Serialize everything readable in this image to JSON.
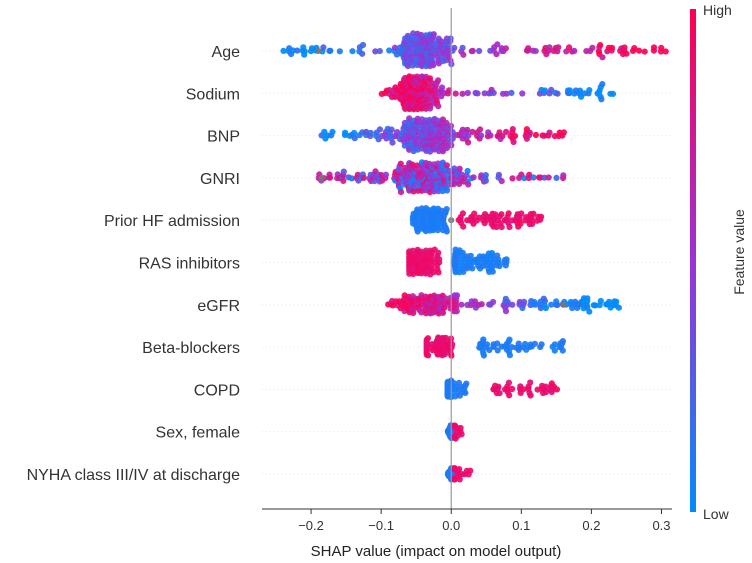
{
  "chart_data": {
    "type": "beeswarm",
    "xlabel": "SHAP value (impact on model output)",
    "xlim": [
      -0.27,
      0.315
    ],
    "xticks": [
      -0.2,
      -0.1,
      0.0,
      0.1,
      0.2,
      0.3
    ],
    "xtick_labels": [
      "−0.2",
      "−0.1",
      "0.0",
      "0.1",
      "0.2",
      "0.3"
    ],
    "colorbar": {
      "label": "Feature value",
      "high": "High",
      "low": "Low",
      "high_color": "#ff0051",
      "low_color": "#008bfb"
    },
    "colors": {
      "high": "#ff0051",
      "low": "#008bfb",
      "missing": "#777777"
    },
    "features": [
      {
        "name": "Age",
        "min": -0.24,
        "max": 0.31,
        "n": 230,
        "pattern": "pos",
        "spread": 1.0,
        "split": 0.0,
        "peak": -0.04,
        "peak_width": 0.035,
        "density": 0.6
      },
      {
        "name": "Sodium",
        "min": -0.1,
        "max": 0.25,
        "n": 210,
        "pattern": "neg",
        "spread": 1.0,
        "split": 0.02,
        "peak": -0.05,
        "peak_width": 0.035,
        "density": 0.75
      },
      {
        "name": "BNP",
        "min": -0.19,
        "max": 0.17,
        "n": 220,
        "pattern": "pos",
        "spread": 1.0,
        "split": -0.02,
        "peak": -0.03,
        "peak_width": 0.05,
        "density": 0.55
      },
      {
        "name": "GNRI",
        "min": -0.19,
        "max": 0.16,
        "n": 220,
        "pattern": "mix",
        "spread": 0.9,
        "split": 0.0,
        "peak": -0.04,
        "peak_width": 0.05,
        "density": 0.55
      },
      {
        "name": "Prior HF admission",
        "min": -0.07,
        "max": 0.13,
        "n": 160,
        "pattern": "binary_pos",
        "spread": 0.7,
        "split": 0.0,
        "neg_center": -0.03,
        "pos_center": 0.05
      },
      {
        "name": "RAS inhibitors",
        "min": -0.06,
        "max": 0.085,
        "n": 150,
        "pattern": "binary_neg",
        "spread": 0.75,
        "split": 0.0,
        "neg_center": -0.04,
        "pos_center": 0.035
      },
      {
        "name": "eGFR",
        "min": -0.09,
        "max": 0.24,
        "n": 190,
        "pattern": "neg",
        "spread": 0.55,
        "split": 0.02,
        "peak": -0.03,
        "peak_width": 0.04,
        "density": 0.4
      },
      {
        "name": "Beta-blockers",
        "min": -0.035,
        "max": 0.16,
        "n": 110,
        "pattern": "binary_neg",
        "spread": 0.55,
        "split": 0.0,
        "neg_center": -0.02,
        "pos_center": 0.08
      },
      {
        "name": "COPD",
        "min": -0.005,
        "max": 0.16,
        "n": 80,
        "pattern": "binary_pos",
        "spread": 0.5,
        "split": 0.0,
        "neg_center": -0.003,
        "pos_center": 0.1
      },
      {
        "name": "Sex, female",
        "min": -0.01,
        "max": 0.015,
        "n": 60,
        "pattern": "tiny",
        "spread": 0.4,
        "split": 0.0
      },
      {
        "name": "NYHA class III/IV at discharge",
        "min": -0.005,
        "max": 0.03,
        "n": 50,
        "pattern": "tiny_pos",
        "spread": 0.35,
        "split": 0.0
      }
    ]
  }
}
